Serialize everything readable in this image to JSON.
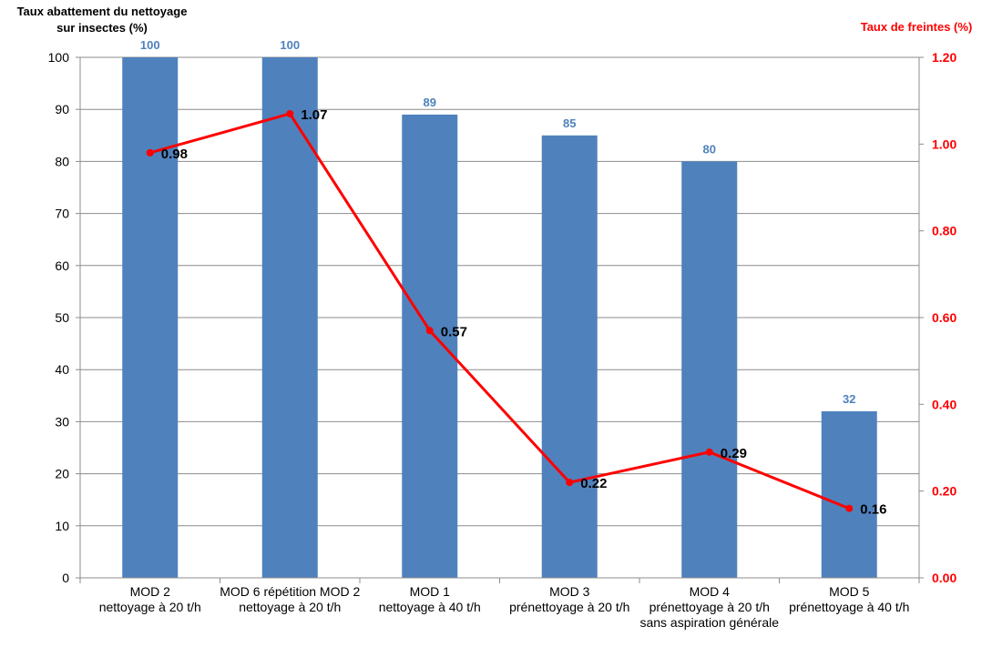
{
  "chart_data": {
    "type": "bar",
    "categories": [
      [
        "MOD 2",
        "nettoyage à 20 t/h"
      ],
      [
        "MOD 6 répétition MOD 2",
        "nettoyage à 20 t/h"
      ],
      [
        "MOD 1",
        "nettoyage à 40 t/h"
      ],
      [
        "MOD 3",
        "prénettoyage à 20 t/h"
      ],
      [
        "MOD 4",
        "prénettoyage à 20 t/h",
        "sans aspiration générale"
      ],
      [
        "MOD 5",
        "prénettoyage à 40 t/h"
      ]
    ],
    "bar_series": {
      "axis": "left",
      "values": [
        100,
        100,
        89,
        85,
        80,
        32
      ],
      "labels": [
        "100",
        "100",
        "89",
        "85",
        "80",
        "32"
      ],
      "color": "#4F81BD",
      "label_color": "#4F81BD"
    },
    "line_series": {
      "axis": "right",
      "values": [
        0.98,
        1.07,
        0.57,
        0.22,
        0.29,
        0.16
      ],
      "labels": [
        "0.98",
        "1.07",
        "0.57",
        "0.22",
        "0.29",
        "0.16"
      ],
      "color": "#FF0000"
    },
    "left_axis": {
      "title_lines": [
        "Taux abattement du nettoyage",
        "sur insectes (%)"
      ],
      "ylim": [
        0,
        100
      ],
      "ticks": [
        0,
        10,
        20,
        30,
        40,
        50,
        60,
        70,
        80,
        90,
        100
      ],
      "tick_labels": [
        "0",
        "10",
        "20",
        "30",
        "40",
        "50",
        "60",
        "70",
        "80",
        "90",
        "100"
      ]
    },
    "right_axis": {
      "title": "Taux de freintes (%)",
      "ylim": [
        0,
        1.2
      ],
      "ticks": [
        0,
        0.2,
        0.4,
        0.6,
        0.8,
        1.0,
        1.2
      ],
      "tick_labels": [
        "0.00",
        "0.20",
        "0.40",
        "0.60",
        "0.80",
        "1.00",
        "1.20"
      ],
      "color": "#FF0000"
    },
    "grid": true,
    "legend": "none"
  }
}
